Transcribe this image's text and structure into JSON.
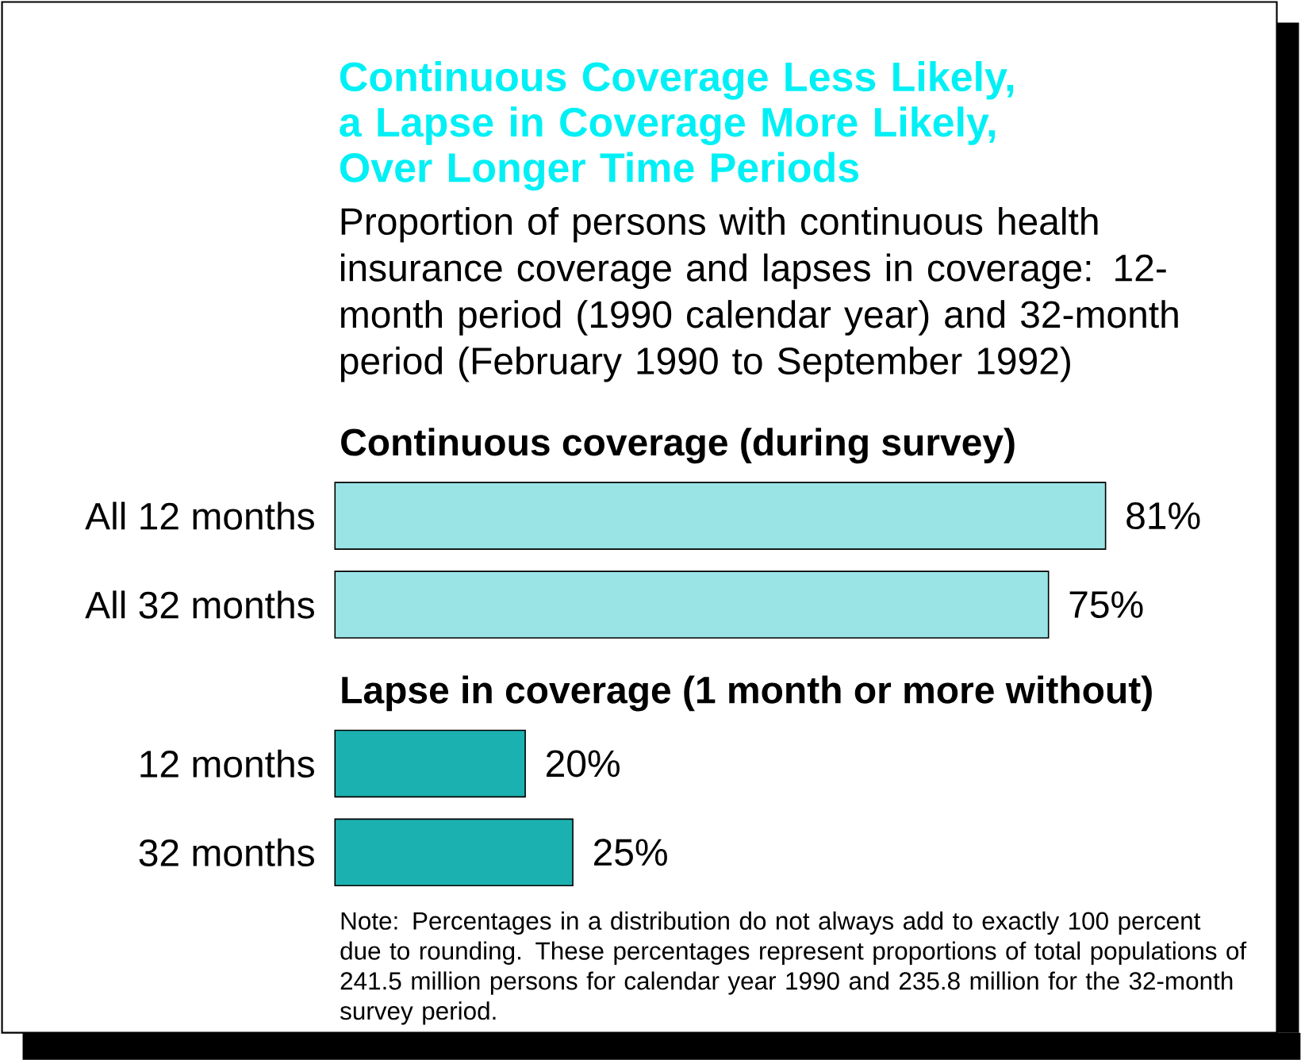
{
  "chart_data": {
    "type": "bar",
    "orientation": "horizontal",
    "title": "Continuous Coverage Less Likely, a Lapse in Coverage More Likely, Over Longer Time Periods",
    "subtitle": "Proportion of persons with continuous health insurance coverage and lapses in coverage:  12-month period (1990 calendar year) and 32-month period (February 1990 to September 1992)",
    "categories": [
      "All 12 months",
      "All 32 months",
      "12 months",
      "32 months"
    ],
    "values": [
      81,
      75,
      20,
      25
    ],
    "colors": [
      "#9ae4e6",
      "#9ae4e6",
      "#1cb1b1",
      "#1cb1b1"
    ],
    "value_labels": [
      "81%",
      "75%",
      "20%",
      "25%"
    ],
    "annotations": [
      "Continuous coverage (during survey)",
      "Lapse in coverage (1 month or more without)",
      "Note:  Percentages in a distribution do not always add to exactly 100 percent due to rounding.  These percentages represent proportions of total populations of 241.5 million persons for calendar year 1990 and 235.8 million for the 32-month survey period."
    ]
  }
}
